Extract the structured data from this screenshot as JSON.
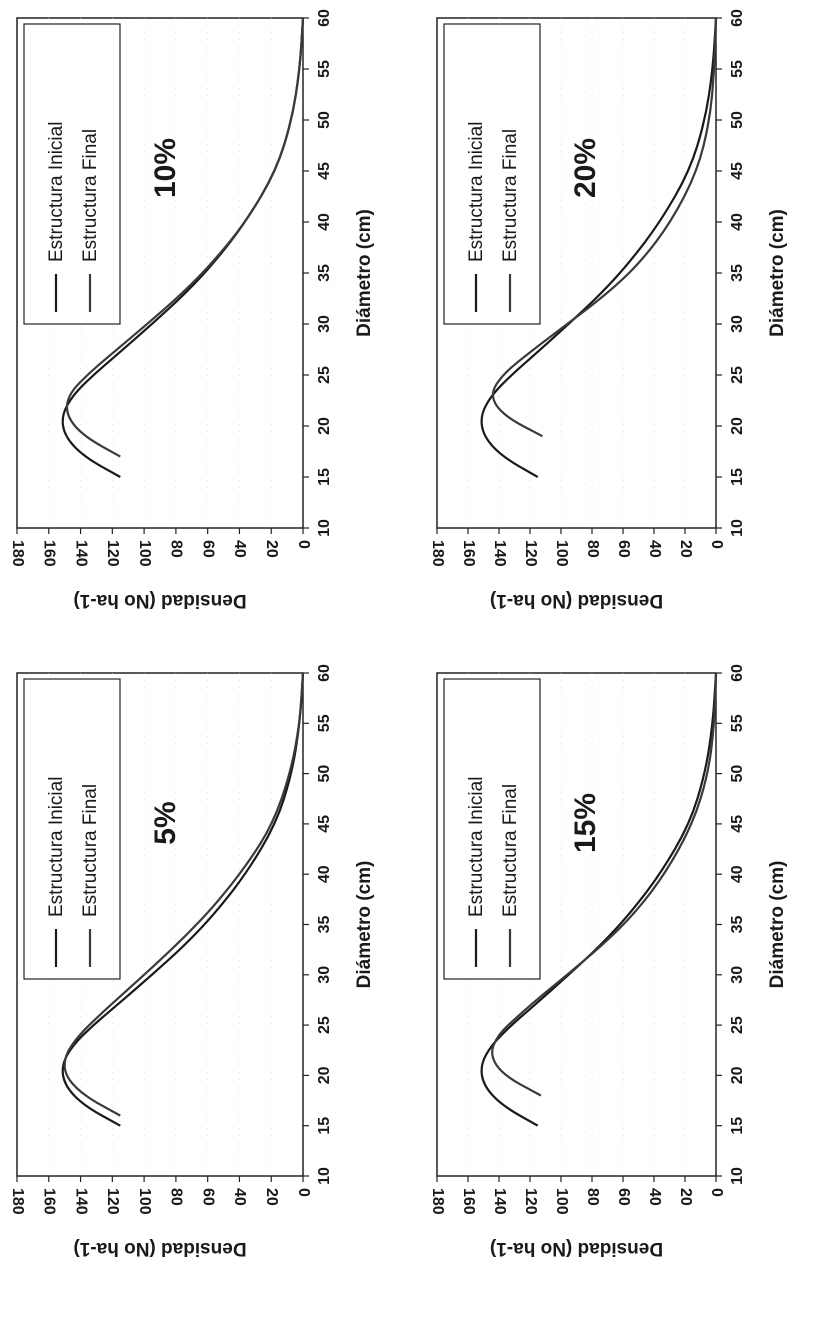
{
  "chart_data": [
    {
      "type": "line",
      "annotation": "10%",
      "xlabel": "Diámetro (cm)",
      "ylabel": "Densidad (No ha-1)",
      "xlim": [
        10,
        60
      ],
      "ylim": [
        0,
        180
      ],
      "x_ticks": [
        "10",
        "15",
        "20",
        "25",
        "30",
        "35",
        "40",
        "45",
        "50",
        "55",
        "60"
      ],
      "y_ticks": [
        "0",
        "20",
        "40",
        "60",
        "80",
        "100",
        "120",
        "140",
        "160",
        "180"
      ],
      "legend": "top-left",
      "series": [
        {
          "name": "Estructura Inicial",
          "x": [
            15,
            17,
            19,
            21,
            23,
            25,
            27,
            30,
            33,
            36,
            40,
            45,
            50,
            55,
            60
          ],
          "values": [
            115,
            138,
            150,
            152,
            145,
            132,
            117,
            95,
            74,
            56,
            36,
            17,
            7,
            2,
            0
          ]
        },
        {
          "name": "Estructura Final",
          "x": [
            17,
            19,
            21,
            23,
            25,
            27,
            30,
            33,
            36,
            40,
            45,
            50,
            55,
            60
          ],
          "values": [
            115,
            138,
            149,
            148,
            136,
            121,
            98,
            76,
            57,
            36,
            17,
            7,
            2,
            0
          ]
        }
      ]
    },
    {
      "type": "line",
      "annotation": "20%",
      "xlabel": "Diámetro (cm)",
      "ylabel": "Densidad (No ha-1)",
      "xlim": [
        10,
        60
      ],
      "ylim": [
        0,
        180
      ],
      "x_ticks": [
        "10",
        "15",
        "20",
        "25",
        "30",
        "35",
        "40",
        "45",
        "50",
        "55",
        "60"
      ],
      "y_ticks": [
        "0",
        "20",
        "40",
        "60",
        "80",
        "100",
        "120",
        "140",
        "160",
        "180"
      ],
      "legend": "top-left",
      "series": [
        {
          "name": "Estructura Inicial",
          "x": [
            15,
            17,
            19,
            21,
            23,
            25,
            27,
            30,
            33,
            36,
            40,
            45,
            50,
            55,
            60
          ],
          "values": [
            115,
            138,
            150,
            152,
            145,
            132,
            117,
            95,
            74,
            56,
            36,
            17,
            7,
            2,
            0
          ]
        },
        {
          "name": "Estructura Final",
          "x": [
            19,
            21,
            23,
            25,
            27,
            30,
            33,
            36,
            40,
            45,
            50,
            55,
            60
          ],
          "values": [
            112,
            137,
            146,
            138,
            122,
            96,
            70,
            49,
            29,
            12,
            4,
            1,
            0
          ]
        }
      ]
    },
    {
      "type": "line",
      "annotation": "5%",
      "xlabel": "Diámetro (cm)",
      "ylabel": "Densidad (No ha-1)",
      "xlim": [
        10,
        60
      ],
      "ylim": [
        0,
        180
      ],
      "x_ticks": [
        "10",
        "15",
        "20",
        "25",
        "30",
        "35",
        "40",
        "45",
        "50",
        "55",
        "60"
      ],
      "y_ticks": [
        "0",
        "20",
        "40",
        "60",
        "80",
        "100",
        "120",
        "140",
        "160",
        "180"
      ],
      "legend": "top-left",
      "series": [
        {
          "name": "Estructura Inicial",
          "x": [
            15,
            17,
            19,
            21,
            23,
            25,
            27,
            30,
            33,
            36,
            40,
            45,
            50,
            55,
            60
          ],
          "values": [
            115,
            138,
            150,
            152,
            145,
            132,
            117,
            95,
            74,
            56,
            36,
            17,
            7,
            2,
            0
          ]
        },
        {
          "name": "Estructura Final",
          "x": [
            16,
            18,
            20,
            22,
            24,
            26,
            28,
            31,
            34,
            37,
            41,
            45,
            50,
            55,
            60
          ],
          "values": [
            115,
            138,
            150,
            150,
            141,
            128,
            114,
            93,
            73,
            55,
            35,
            19,
            8,
            2,
            0
          ]
        }
      ]
    },
    {
      "type": "line",
      "annotation": "15%",
      "xlabel": "Diámetro (cm)",
      "ylabel": "Densidad (No ha-1)",
      "xlim": [
        10,
        60
      ],
      "ylim": [
        0,
        180
      ],
      "x_ticks": [
        "10",
        "15",
        "20",
        "25",
        "30",
        "35",
        "40",
        "45",
        "50",
        "55",
        "60"
      ],
      "y_ticks": [
        "0",
        "20",
        "40",
        "60",
        "80",
        "100",
        "120",
        "140",
        "160",
        "180"
      ],
      "legend": "top-left",
      "series": [
        {
          "name": "Estructura Inicial",
          "x": [
            15,
            17,
            19,
            21,
            23,
            25,
            27,
            30,
            33,
            36,
            40,
            45,
            50,
            55,
            60
          ],
          "values": [
            115,
            138,
            150,
            152,
            145,
            132,
            117,
            95,
            74,
            56,
            36,
            17,
            7,
            2,
            0
          ]
        },
        {
          "name": "Estructura Final",
          "x": [
            18,
            20,
            22,
            24,
            26,
            28,
            30,
            33,
            36,
            40,
            45,
            50,
            55,
            60
          ],
          "values": [
            113,
            137,
            146,
            141,
            127,
            112,
            96,
            73,
            53,
            33,
            15,
            5,
            1,
            0
          ]
        }
      ]
    }
  ]
}
